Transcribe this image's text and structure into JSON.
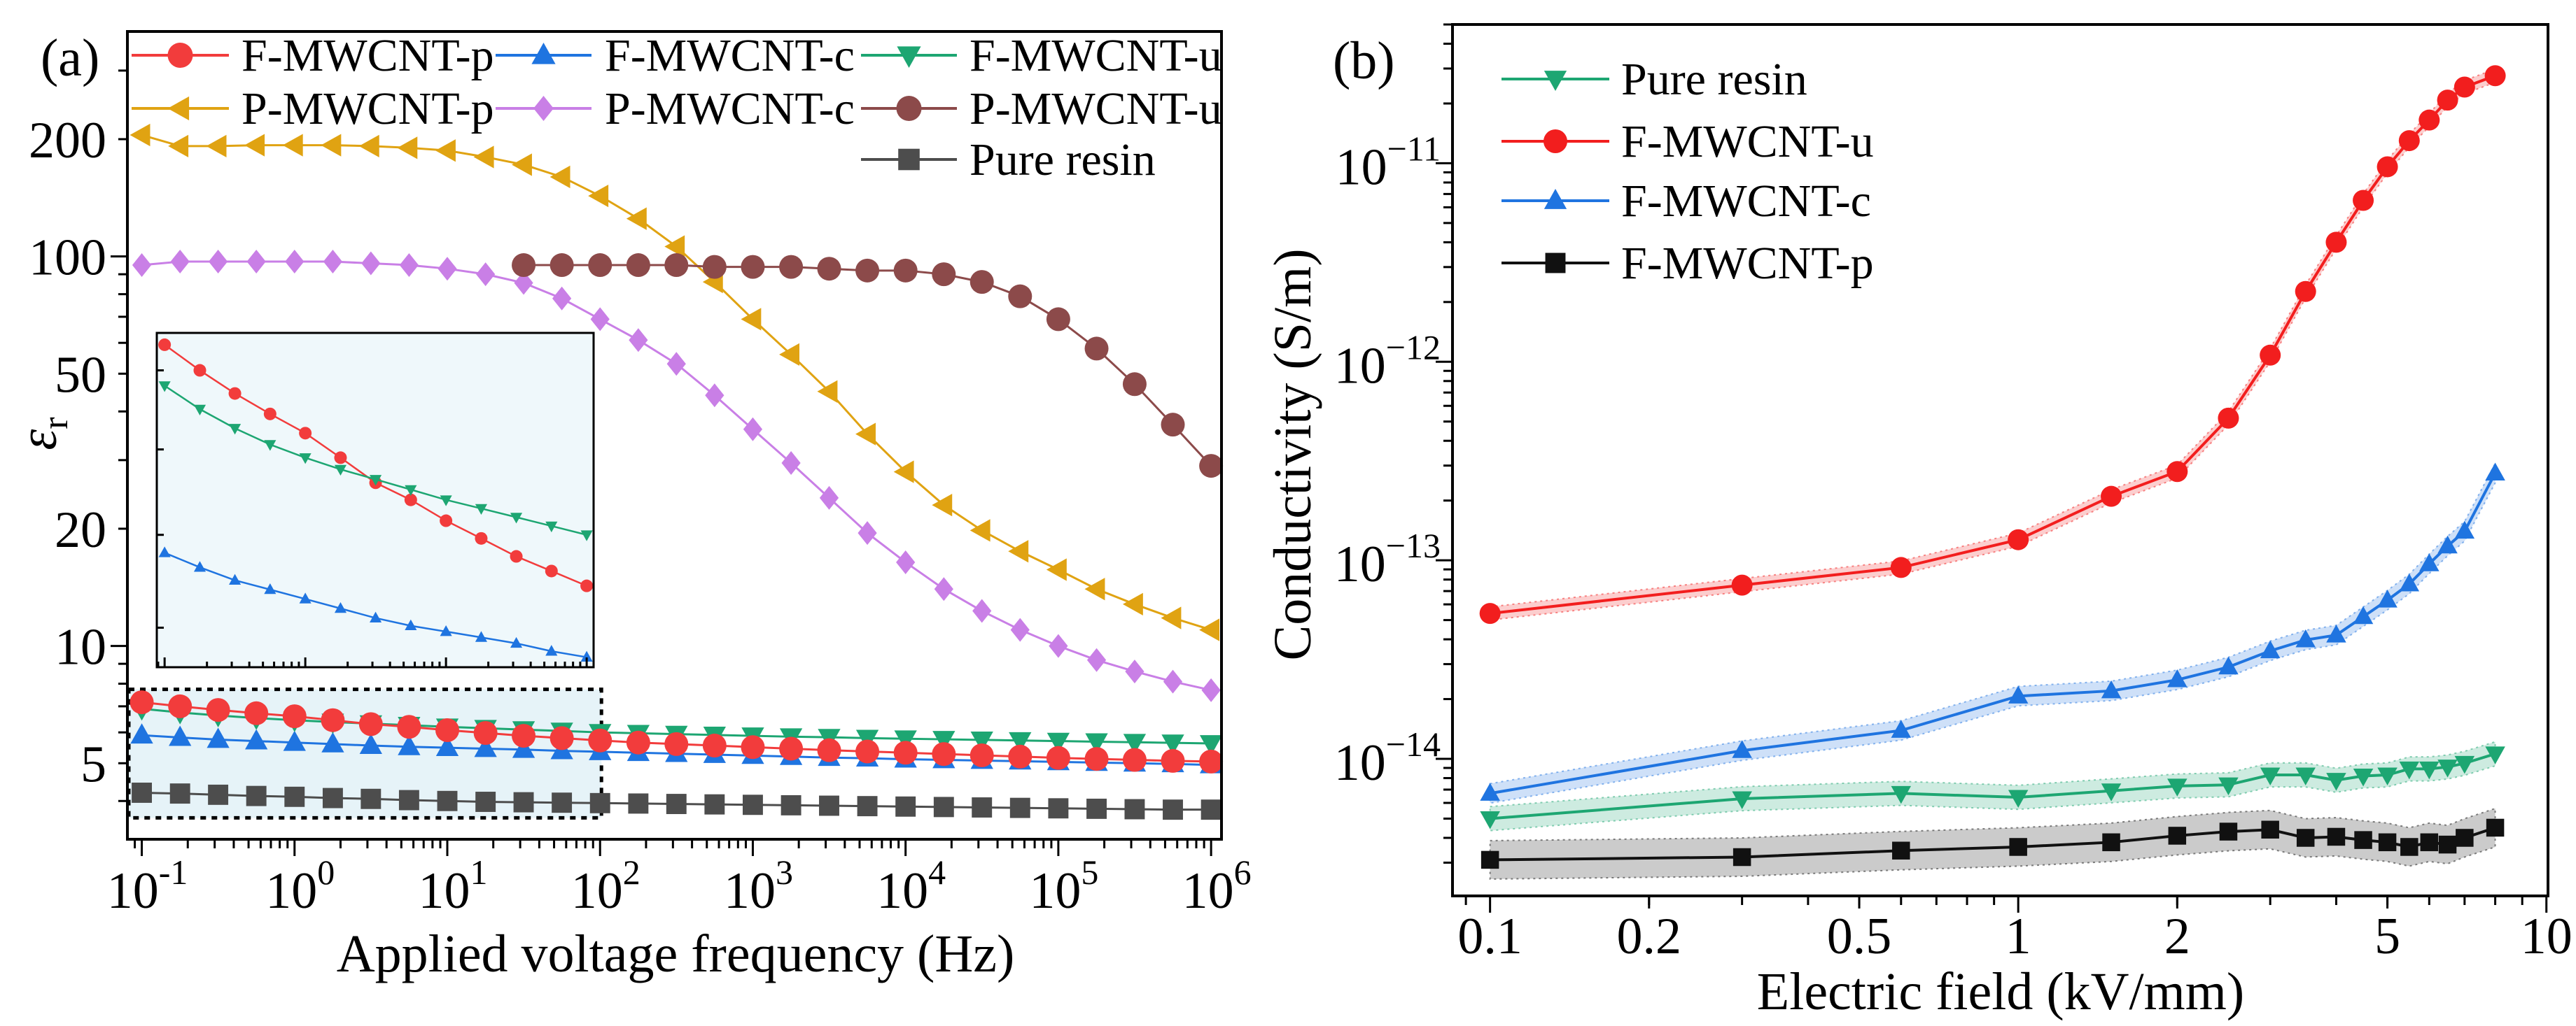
{
  "chart_data": [
    {
      "type": "line",
      "panel_label": "(a)",
      "xlabel": "Applied voltage frequency (Hz)",
      "ylabel": "ε",
      "ylabel_sub": "r",
      "xscale": "log",
      "yscale": "log",
      "xlim": [
        0.0805,
        1170000
      ],
      "ylim": [
        3.19,
        378
      ],
      "xticks": [
        {
          "value": 0.1,
          "base": "10",
          "exp": "-1"
        },
        {
          "value": 1,
          "base": "10",
          "exp": "0"
        },
        {
          "value": 10,
          "base": "10",
          "exp": "1"
        },
        {
          "value": 100,
          "base": "10",
          "exp": "2"
        },
        {
          "value": 1000,
          "base": "10",
          "exp": "3"
        },
        {
          "value": 10000,
          "base": "10",
          "exp": "4"
        },
        {
          "value": 100000,
          "base": "10",
          "exp": "5"
        },
        {
          "value": 1000000,
          "base": "10",
          "exp": "6"
        }
      ],
      "yticks": [
        {
          "value": 5,
          "label": "5"
        },
        {
          "value": 10,
          "label": "10"
        },
        {
          "value": 20,
          "label": "20"
        },
        {
          "value": 50,
          "label": "50"
        },
        {
          "value": 100,
          "label": "100"
        },
        {
          "value": 200,
          "label": "200"
        }
      ],
      "legend_position": "top",
      "legend_columns": 3,
      "x": [
        0.1,
        0.178,
        0.316,
        0.562,
        1,
        1.78,
        3.16,
        5.62,
        10,
        17.8,
        31.6,
        56.2,
        100,
        178,
        316,
        562,
        1000,
        1780,
        3160,
        5620,
        10000,
        17800,
        31600,
        56200,
        100000,
        178000,
        316000,
        562000,
        1000000
      ],
      "series": [
        {
          "name": "F-MWCNT-p",
          "color": "#f23c3c",
          "marker": "circle",
          "values": [
            7.17,
            7.0,
            6.85,
            6.72,
            6.6,
            6.45,
            6.3,
            6.2,
            6.08,
            5.98,
            5.88,
            5.8,
            5.72,
            5.65,
            5.6,
            5.55,
            5.5,
            5.45,
            5.4,
            5.36,
            5.32,
            5.28,
            5.24,
            5.2,
            5.16,
            5.13,
            5.1,
            5.07,
            5.05
          ]
        },
        {
          "name": "F-MWCNT-c",
          "color": "#1f74e0",
          "marker": "triangle-up",
          "values": [
            5.9,
            5.82,
            5.75,
            5.7,
            5.65,
            5.6,
            5.55,
            5.51,
            5.48,
            5.45,
            5.42,
            5.38,
            5.35,
            5.32,
            5.29,
            5.26,
            5.23,
            5.2,
            5.17,
            5.15,
            5.12,
            5.1,
            5.08,
            5.06,
            5.04,
            5.02,
            5.0,
            4.98,
            4.95
          ]
        },
        {
          "name": "F-MWCNT-u",
          "color": "#1da672",
          "marker": "triangle-down",
          "values": [
            6.9,
            6.75,
            6.63,
            6.53,
            6.45,
            6.38,
            6.32,
            6.26,
            6.2,
            6.15,
            6.1,
            6.05,
            6.0,
            5.97,
            5.94,
            5.91,
            5.88,
            5.85,
            5.83,
            5.8,
            5.78,
            5.76,
            5.74,
            5.72,
            5.7,
            5.68,
            5.66,
            5.64,
            5.62
          ]
        },
        {
          "name": "P-MWCNT-p",
          "color": "#e0a312",
          "marker": "triangle-left",
          "values": [
            205,
            192,
            192,
            193,
            193,
            193,
            192,
            190,
            187,
            180,
            172,
            160,
            143,
            125,
            106,
            86,
            69,
            56,
            45,
            35,
            28,
            23,
            19.8,
            17.5,
            15.7,
            14,
            12.8,
            11.8,
            11
          ]
        },
        {
          "name": "P-MWCNT-c",
          "color": "#c97fe6",
          "marker": "diamond",
          "values": [
            95,
            97,
            97,
            97,
            97,
            97,
            96,
            95,
            93,
            90,
            85.5,
            78,
            69,
            61,
            53,
            44,
            36,
            29.5,
            24,
            19.5,
            16.4,
            14,
            12.3,
            11,
            10,
            9.2,
            8.6,
            8.1,
            7.7
          ]
        },
        {
          "name": "P-MWCNT-u",
          "color": "#8c4a4a",
          "marker": "hexagon",
          "values": [
            null,
            null,
            null,
            null,
            null,
            null,
            null,
            null,
            null,
            null,
            95,
            95,
            95,
            95,
            95,
            94,
            94,
            94,
            93,
            92,
            92,
            90,
            86,
            79,
            69,
            58,
            47,
            37,
            29
          ]
        },
        {
          "name": "Pure resin",
          "color": "#4d4d4d",
          "marker": "square",
          "values": [
            4.2,
            4.18,
            4.15,
            4.12,
            4.1,
            4.07,
            4.05,
            4.02,
            4.0,
            3.98,
            3.97,
            3.96,
            3.95,
            3.94,
            3.93,
            3.92,
            3.91,
            3.9,
            3.89,
            3.88,
            3.87,
            3.86,
            3.85,
            3.84,
            3.83,
            3.82,
            3.81,
            3.8,
            3.8
          ]
        }
      ],
      "highlight_box": {
        "xlim": [
          0.0805,
          100
        ],
        "ylim": [
          3.62,
          7.74
        ],
        "fill": "#e6f3f8"
      },
      "inset": {
        "xlim": [
          0.088,
          112
        ],
        "ylim": [
          5.3,
          7.25
        ],
        "series": [
          "F-MWCNT-p",
          "F-MWCNT-u",
          "F-MWCNT-c"
        ],
        "background": "#eff8fb"
      }
    },
    {
      "type": "line",
      "panel_label": "(b)",
      "xlabel": "Electric field (kV/mm)",
      "ylabel": "Conductivity (S/m)",
      "xscale": "log",
      "yscale": "log",
      "xlim": [
        0.0849,
        10.07
      ],
      "ylim": [
        2.04e-15,
        5e-11
      ],
      "xticks": [
        {
          "value": 0.1,
          "label": "0.1"
        },
        {
          "value": 0.2,
          "label": "0.2"
        },
        {
          "value": 0.5,
          "label": "0.5"
        },
        {
          "value": 1,
          "label": "1"
        },
        {
          "value": 2,
          "label": "2"
        },
        {
          "value": 5,
          "label": "5"
        },
        {
          "value": 10,
          "label": "10"
        }
      ],
      "yticks": [
        {
          "value": 1e-14,
          "base": "10",
          "exp": "−14"
        },
        {
          "value": 1e-13,
          "base": "10",
          "exp": "−13"
        },
        {
          "value": 1e-12,
          "base": "10",
          "exp": "−12"
        },
        {
          "value": 1e-11,
          "base": "10",
          "exp": "−11"
        }
      ],
      "legend_position": "top-left",
      "x": [
        0.1,
        0.3,
        0.6,
        1,
        1.5,
        2,
        2.5,
        3,
        3.5,
        4,
        4.5,
        5,
        5.5,
        6,
        6.5,
        7,
        8
      ],
      "series": [
        {
          "name": "Pure resin",
          "color": "#1da672",
          "marker": "triangle-down",
          "band_factor": 1.15,
          "values": [
            5e-15,
            6.3e-15,
            6.7e-15,
            6.4e-15,
            6.9e-15,
            7.3e-15,
            7.4e-15,
            8.3e-15,
            8.3e-15,
            7.8e-15,
            8.2e-15,
            8.3e-15,
            8.9e-15,
            8.9e-15,
            9.1e-15,
            9.5e-15,
            1.06e-14
          ]
        },
        {
          "name": "F-MWCNT-u",
          "color": "#f21e1e",
          "marker": "circle",
          "band_factor": 1.08,
          "values": [
            5.4e-14,
            7.5e-14,
            9.2e-14,
            1.27e-13,
            2.1e-13,
            2.8e-13,
            5.2e-13,
            1.08e-12,
            2.26e-12,
            4e-12,
            6.5e-12,
            9.6e-12,
            1.3e-11,
            1.65e-11,
            2.08e-11,
            2.42e-11,
            2.76e-11
          ]
        },
        {
          "name": "F-MWCNT-c",
          "color": "#1f74e0",
          "marker": "triangle-up",
          "band_factor": 1.12,
          "values": [
            6.7e-15,
            1.1e-14,
            1.39e-14,
            2.07e-14,
            2.2e-14,
            2.5e-14,
            2.9e-14,
            3.5e-14,
            3.97e-14,
            4.2e-14,
            5.2e-14,
            6.3e-14,
            7.6e-14,
            9.6e-14,
            1.18e-13,
            1.4e-13,
            2.75e-13
          ]
        },
        {
          "name": "F-MWCNT-p",
          "color": "#111111",
          "marker": "square",
          "band_factor": 1.25,
          "values": [
            3.1e-15,
            3.2e-15,
            3.45e-15,
            3.6e-15,
            3.8e-15,
            4.1e-15,
            4.3e-15,
            4.4e-15,
            4e-15,
            4.05e-15,
            3.9e-15,
            3.8e-15,
            3.6e-15,
            3.8e-15,
            3.7e-15,
            4e-15,
            4.5e-15
          ]
        }
      ]
    }
  ]
}
